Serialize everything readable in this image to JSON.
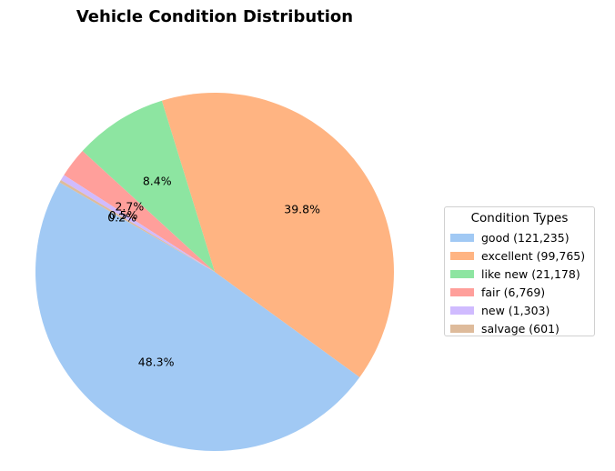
{
  "chart_data": {
    "type": "pie",
    "title": "Vehicle Condition Distribution",
    "legend_title": "Condition Types",
    "legend_position": "right",
    "start_angle_deg": 150,
    "slices": [
      {
        "label": "good (121,235)",
        "category": "good",
        "count": 121235,
        "percent": 48.3,
        "percent_label": "48.3%",
        "color": "#a1c9f4"
      },
      {
        "label": "excellent (99,765)",
        "category": "excellent",
        "count": 99765,
        "percent": 39.8,
        "percent_label": "39.8%",
        "color": "#ffb482"
      },
      {
        "label": "like new (21,178)",
        "category": "like new",
        "count": 21178,
        "percent": 8.4,
        "percent_label": "8.4%",
        "color": "#8de5a1"
      },
      {
        "label": "fair (6,769)",
        "category": "fair",
        "count": 6769,
        "percent": 2.7,
        "percent_label": "2.7%",
        "color": "#ff9f9b"
      },
      {
        "label": "new (1,303)",
        "category": "new",
        "count": 1303,
        "percent": 0.5,
        "percent_label": "0.5%",
        "color": "#d0bbff"
      },
      {
        "label": "salvage (601)",
        "category": "salvage",
        "count": 601,
        "percent": 0.2,
        "percent_label": "0.2%",
        "color": "#debb9b"
      }
    ]
  }
}
